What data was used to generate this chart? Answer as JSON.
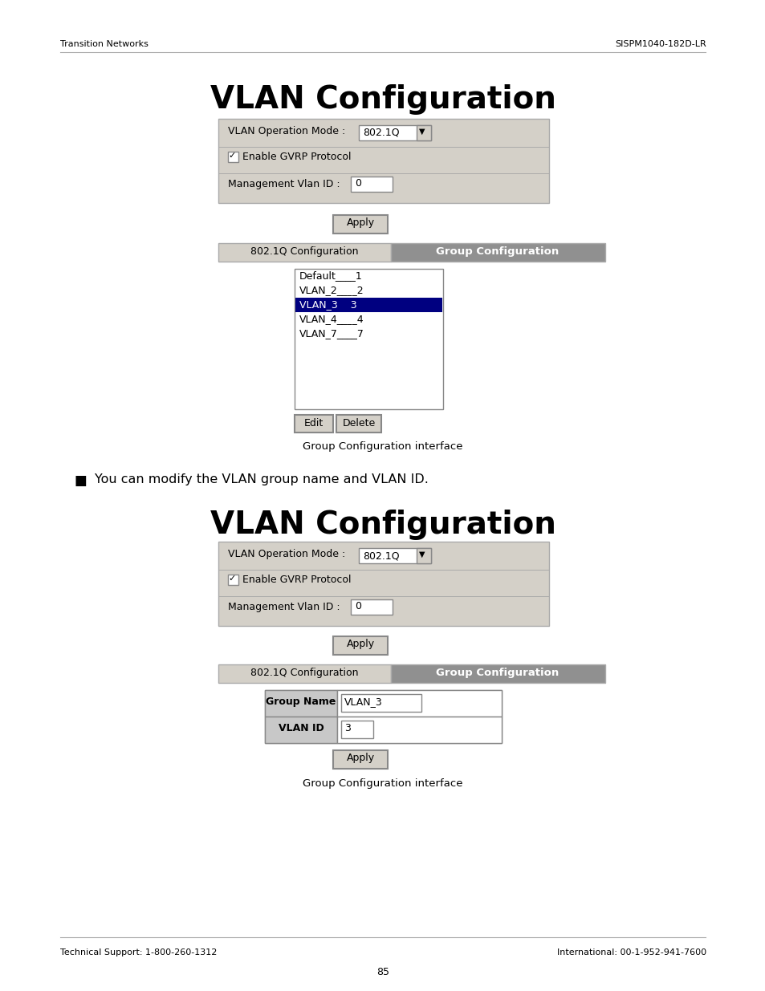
{
  "header_left": "Transition Networks",
  "header_right": "SISPM1040-182D-LR",
  "footer_left": "Technical Support: 1-800-260-1312",
  "footer_right": "International: 00-1-952-941-7600",
  "footer_page": "85",
  "title1": "VLAN Configuration",
  "title2": "VLAN Configuration",
  "vlan_op_mode_label": "VLAN Operation Mode : ",
  "vlan_op_mode_val": "802.1Q",
  "mgmt_vlan_label": "Management Vlan ID : ",
  "mgmt_vlan_val": "0",
  "apply_btn": "Apply",
  "tab1_label": "802.1Q Configuration",
  "tab2_label": "Group Configuration",
  "vlan_list": [
    "Default____1",
    "VLAN_2____2",
    "VLAN_3    3",
    "VLAN_4____4",
    "VLAN_7____7"
  ],
  "selected_row": 2,
  "edit_btn": "Edit",
  "delete_btn": "Delete",
  "group_config_caption": "Group Configuration interface",
  "bullet_text": "You can modify the VLAN group name and VLAN ID.",
  "group_name_label": "Group Name",
  "group_name_val": "VLAN_3",
  "vlan_id_label": "VLAN ID",
  "vlan_id_val": "3",
  "bg_color": "#ffffff",
  "form_bg": "#d4d0c8",
  "tab2_bg": "#909090",
  "selected_color": "#000080",
  "selected_text_color": "#ffffff",
  "border_color": "#808080",
  "input_bg": "#ffffff",
  "button_bg": "#d4d0c8",
  "label_cell_bg": "#c8c8c8"
}
